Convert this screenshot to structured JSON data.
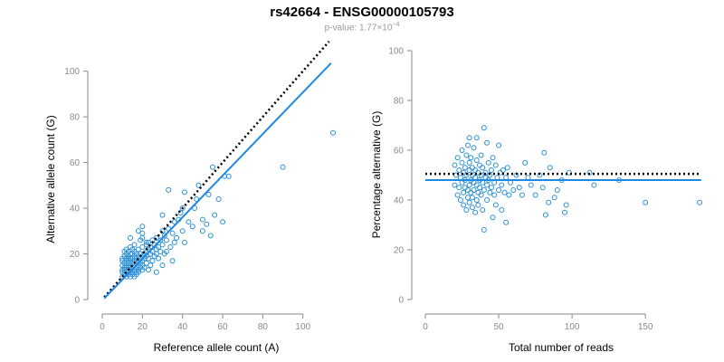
{
  "title": "rs42664 - ENSG00000105793",
  "subtitle": {
    "prefix": "p-value: ",
    "mantissa": "1.77",
    "times": "×10",
    "exponent": "−4"
  },
  "colors": {
    "points": "#2a8fd6",
    "fit_line": "#1e88e5",
    "reference_line": "#000000",
    "axis": "#8a8a8a"
  },
  "chart_data": [
    {
      "type": "scatter",
      "xlabel": "Reference allele count (A)",
      "ylabel": "Alternative allele count (G)",
      "xlim": [
        0,
        115
      ],
      "ylim": [
        0,
        105
      ],
      "xticks": [
        0,
        20,
        40,
        60,
        80,
        100
      ],
      "yticks": [
        0,
        20,
        40,
        60,
        80,
        100
      ],
      "grid": false,
      "reference_line": {
        "style": "dotted",
        "color": "#000000",
        "from": [
          1,
          1
        ],
        "to": [
          113,
          113
        ]
      },
      "fit_line": {
        "style": "solid",
        "color": "#1e88e5",
        "from": [
          1,
          0.5
        ],
        "to": [
          114,
          103.5
        ]
      },
      "points": [
        [
          10,
          10
        ],
        [
          10,
          12
        ],
        [
          10,
          13
        ],
        [
          10,
          15
        ],
        [
          10,
          17
        ],
        [
          10,
          18
        ],
        [
          11,
          11
        ],
        [
          11,
          13
        ],
        [
          11,
          14
        ],
        [
          11,
          16
        ],
        [
          11,
          19
        ],
        [
          11,
          21
        ],
        [
          12,
          10
        ],
        [
          12,
          12
        ],
        [
          12,
          14
        ],
        [
          12,
          15
        ],
        [
          12,
          17
        ],
        [
          12,
          18
        ],
        [
          12,
          20
        ],
        [
          12,
          22
        ],
        [
          13,
          11
        ],
        [
          13,
          13
        ],
        [
          13,
          14
        ],
        [
          13,
          16
        ],
        [
          13,
          18
        ],
        [
          13,
          19
        ],
        [
          13,
          21
        ],
        [
          14,
          10
        ],
        [
          14,
          12
        ],
        [
          14,
          13
        ],
        [
          14,
          15
        ],
        [
          14,
          17
        ],
        [
          14,
          18
        ],
        [
          14,
          20
        ],
        [
          14,
          23
        ],
        [
          14,
          27
        ],
        [
          15,
          11
        ],
        [
          15,
          12
        ],
        [
          15,
          14
        ],
        [
          15,
          16
        ],
        [
          15,
          18
        ],
        [
          15,
          20
        ],
        [
          15,
          22
        ],
        [
          16,
          10
        ],
        [
          16,
          13
        ],
        [
          16,
          15
        ],
        [
          16,
          17
        ],
        [
          16,
          19
        ],
        [
          16,
          21
        ],
        [
          16,
          24
        ],
        [
          17,
          11
        ],
        [
          17,
          12
        ],
        [
          17,
          14
        ],
        [
          17,
          16
        ],
        [
          17,
          18
        ],
        [
          17,
          20
        ],
        [
          18,
          12
        ],
        [
          18,
          13
        ],
        [
          18,
          15
        ],
        [
          18,
          17
        ],
        [
          18,
          19
        ],
        [
          18,
          22
        ],
        [
          18,
          30
        ],
        [
          19,
          14
        ],
        [
          19,
          16
        ],
        [
          19,
          18
        ],
        [
          19,
          20
        ],
        [
          19,
          26
        ],
        [
          20,
          13
        ],
        [
          20,
          15
        ],
        [
          20,
          17
        ],
        [
          20,
          19
        ],
        [
          20,
          23
        ],
        [
          20,
          27
        ],
        [
          20,
          29
        ],
        [
          20,
          32
        ],
        [
          21,
          14
        ],
        [
          21,
          18
        ],
        [
          21,
          20
        ],
        [
          22,
          16
        ],
        [
          22,
          19
        ],
        [
          22,
          21
        ],
        [
          22,
          24
        ],
        [
          22,
          25
        ],
        [
          23,
          13
        ],
        [
          23,
          18
        ],
        [
          23,
          22
        ],
        [
          23,
          25
        ],
        [
          24,
          15
        ],
        [
          24,
          20
        ],
        [
          24,
          23
        ],
        [
          25,
          17
        ],
        [
          25,
          21
        ],
        [
          25,
          26
        ],
        [
          26,
          19
        ],
        [
          26,
          24
        ],
        [
          27,
          12
        ],
        [
          27,
          20
        ],
        [
          27,
          22
        ],
        [
          27,
          27
        ],
        [
          28,
          18
        ],
        [
          28,
          23
        ],
        [
          29,
          21
        ],
        [
          29,
          26
        ],
        [
          30,
          15
        ],
        [
          30,
          24
        ],
        [
          30,
          30
        ],
        [
          30,
          37
        ],
        [
          31,
          20
        ],
        [
          31,
          28
        ],
        [
          32,
          21
        ],
        [
          32,
          26
        ],
        [
          33,
          31
        ],
        [
          33,
          48
        ],
        [
          34,
          23
        ],
        [
          35,
          29
        ],
        [
          35,
          17
        ],
        [
          36,
          25
        ],
        [
          36,
          34
        ],
        [
          37,
          27
        ],
        [
          38,
          35
        ],
        [
          39,
          38
        ],
        [
          40,
          40
        ],
        [
          40,
          30
        ],
        [
          41,
          47
        ],
        [
          41,
          25
        ],
        [
          43,
          34
        ],
        [
          45,
          32
        ],
        [
          46,
          40
        ],
        [
          47,
          44
        ],
        [
          48,
          50
        ],
        [
          50,
          35
        ],
        [
          50,
          30
        ],
        [
          52,
          33
        ],
        [
          53,
          46
        ],
        [
          54,
          28
        ],
        [
          55,
          58
        ],
        [
          56,
          37
        ],
        [
          58,
          44
        ],
        [
          60,
          34
        ],
        [
          61,
          54
        ],
        [
          63,
          54
        ],
        [
          90,
          58
        ],
        [
          115,
          73
        ]
      ]
    },
    {
      "type": "scatter",
      "xlabel": "Total number of reads",
      "ylabel": "Percentage alternative (G)",
      "xlim": [
        0,
        190
      ],
      "ylim": [
        0,
        100
      ],
      "xticks": [
        0,
        50,
        100,
        150
      ],
      "yticks": [
        0,
        20,
        40,
        60,
        80,
        100
      ],
      "grid": false,
      "reference_line": {
        "style": "dotted",
        "color": "#000000",
        "y": 50.5,
        "xrange": [
          0,
          188
        ]
      },
      "fit_line": {
        "style": "solid",
        "color": "#1e88e5",
        "y": 48,
        "xrange": [
          0,
          188
        ]
      },
      "points": [
        [
          20,
          54
        ],
        [
          20,
          46
        ],
        [
          21,
          50
        ],
        [
          22,
          42
        ],
        [
          22,
          57
        ],
        [
          23,
          52
        ],
        [
          23,
          45
        ],
        [
          24,
          49
        ],
        [
          24,
          40
        ],
        [
          25,
          55
        ],
        [
          25,
          47
        ],
        [
          25,
          60
        ],
        [
          26,
          43
        ],
        [
          26,
          51
        ],
        [
          26,
          38
        ],
        [
          27,
          53
        ],
        [
          27,
          45
        ],
        [
          27,
          48
        ],
        [
          28,
          58
        ],
        [
          28,
          36
        ],
        [
          28,
          50
        ],
        [
          29,
          44
        ],
        [
          29,
          62
        ],
        [
          29,
          41
        ],
        [
          30,
          52
        ],
        [
          30,
          46
        ],
        [
          30,
          55
        ],
        [
          30,
          39
        ],
        [
          30,
          65
        ],
        [
          31,
          48
        ],
        [
          31,
          43
        ],
        [
          31,
          57
        ],
        [
          32,
          50
        ],
        [
          32,
          41
        ],
        [
          32,
          53
        ],
        [
          32,
          37
        ],
        [
          33,
          61
        ],
        [
          33,
          47
        ],
        [
          33,
          44
        ],
        [
          34,
          52
        ],
        [
          34,
          35
        ],
        [
          34,
          49
        ],
        [
          35,
          65
        ],
        [
          35,
          46
        ],
        [
          35,
          40
        ],
        [
          35,
          56
        ],
        [
          36,
          51
        ],
        [
          36,
          43
        ],
        [
          36,
          38
        ],
        [
          37,
          48
        ],
        [
          37,
          54
        ],
        [
          37,
          45
        ],
        [
          38,
          58
        ],
        [
          38,
          42
        ],
        [
          38,
          50
        ],
        [
          39,
          36
        ],
        [
          39,
          47
        ],
        [
          39,
          53
        ],
        [
          40,
          69
        ],
        [
          40,
          44
        ],
        [
          40,
          28
        ],
        [
          41,
          49
        ],
        [
          41,
          51
        ],
        [
          42,
          63
        ],
        [
          42,
          46
        ],
        [
          42,
          40
        ],
        [
          43,
          55
        ],
        [
          43,
          48
        ],
        [
          44,
          43
        ],
        [
          44,
          50
        ],
        [
          45,
          52
        ],
        [
          45,
          45
        ],
        [
          46,
          33
        ],
        [
          46,
          57
        ],
        [
          47,
          47
        ],
        [
          47,
          42
        ],
        [
          48,
          54
        ],
        [
          48,
          38
        ],
        [
          49,
          49
        ],
        [
          50,
          62
        ],
        [
          50,
          44
        ],
        [
          51,
          51
        ],
        [
          52,
          36
        ],
        [
          52,
          46
        ],
        [
          53,
          52
        ],
        [
          54,
          43
        ],
        [
          55,
          31
        ],
        [
          55,
          49
        ],
        [
          56,
          53
        ],
        [
          57,
          42
        ],
        [
          58,
          47
        ],
        [
          60,
          44
        ],
        [
          62,
          50
        ],
        [
          64,
          45
        ],
        [
          66,
          42
        ],
        [
          68,
          55
        ],
        [
          70,
          49
        ],
        [
          72,
          46
        ],
        [
          75,
          42
        ],
        [
          78,
          50
        ],
        [
          80,
          45
        ],
        [
          81,
          59
        ],
        [
          82,
          34
        ],
        [
          84,
          39
        ],
        [
          85,
          53
        ],
        [
          88,
          41
        ],
        [
          90,
          44
        ],
        [
          93,
          48
        ],
        [
          95,
          35
        ],
        [
          96,
          38
        ],
        [
          98,
          51
        ],
        [
          112,
          51
        ],
        [
          115,
          46
        ],
        [
          132,
          48
        ],
        [
          150,
          39
        ],
        [
          187,
          39
        ]
      ]
    }
  ]
}
